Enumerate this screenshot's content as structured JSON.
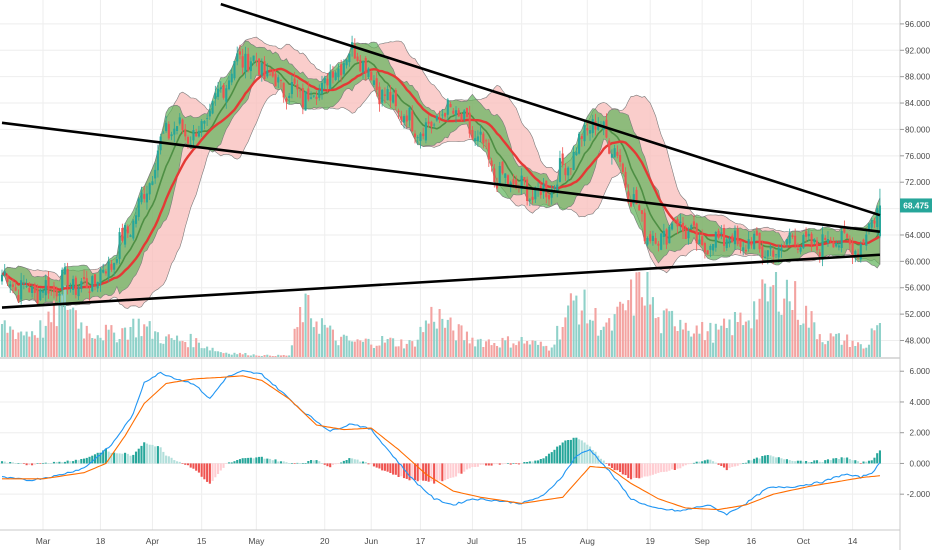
{
  "colors": {
    "up": "#26a69a",
    "down": "#ef5350",
    "vol_up": "#8fd1c9",
    "vol_down": "#f3a3a1",
    "ma": "#e53935",
    "bb_outer_fill": "#f8bcb9",
    "bb_inner_fill": "#5fb35a",
    "trendline": "#000000",
    "macd_line": "#2196f3",
    "signal_line": "#ff6d00",
    "price_tag": "#26a69a",
    "grid": "#eeeeee",
    "axis_text": "#4a4a4a"
  },
  "chart_data": [
    {
      "type": "candlestick",
      "panel": "price",
      "y_ticks": [
        "96.000",
        "92.000",
        "88.000",
        "84.000",
        "80.000",
        "76.000",
        "72.000",
        "68.000",
        "64.000",
        "60.000",
        "56.000",
        "52.000",
        "48.000"
      ],
      "y_tick_values": [
        96,
        92,
        88,
        84,
        80,
        76,
        72,
        68,
        64,
        60,
        56,
        52,
        48
      ],
      "ylim": [
        45.5,
        97.5
      ],
      "last_price_label": "68.475",
      "last_price": 68.475,
      "anchor_closes": [
        [
          0,
          58
        ],
        [
          6,
          56
        ],
        [
          12,
          55.5
        ],
        [
          18,
          56
        ],
        [
          24,
          57
        ],
        [
          30,
          56
        ],
        [
          36,
          58
        ],
        [
          40,
          60
        ],
        [
          45,
          64
        ],
        [
          50,
          68
        ],
        [
          55,
          74
        ],
        [
          60,
          80
        ],
        [
          65,
          80
        ],
        [
          70,
          79
        ],
        [
          75,
          81
        ],
        [
          80,
          86
        ],
        [
          85,
          90
        ],
        [
          90,
          91
        ],
        [
          95,
          89
        ],
        [
          100,
          87
        ],
        [
          105,
          86
        ],
        [
          110,
          85
        ],
        [
          115,
          86
        ],
        [
          120,
          88
        ],
        [
          125,
          91
        ],
        [
          130,
          92
        ],
        [
          135,
          88
        ],
        [
          140,
          85
        ],
        [
          145,
          83
        ],
        [
          150,
          81
        ],
        [
          155,
          80
        ],
        [
          160,
          82
        ],
        [
          165,
          83
        ],
        [
          170,
          80
        ],
        [
          175,
          78
        ],
        [
          180,
          73
        ],
        [
          185,
          72
        ],
        [
          190,
          71
        ],
        [
          195,
          70
        ],
        [
          200,
          71
        ],
        [
          205,
          74
        ],
        [
          210,
          77
        ],
        [
          215,
          81
        ],
        [
          220,
          80
        ],
        [
          225,
          76
        ],
        [
          230,
          70
        ],
        [
          235,
          65
        ],
        [
          240,
          63
        ],
        [
          245,
          66
        ],
        [
          250,
          65
        ],
        [
          255,
          62
        ],
        [
          260,
          63
        ],
        [
          265,
          64
        ],
        [
          270,
          62
        ],
        [
          275,
          63
        ],
        [
          280,
          61
        ],
        [
          285,
          62
        ],
        [
          290,
          64
        ],
        [
          295,
          62
        ],
        [
          300,
          63
        ],
        [
          305,
          64
        ],
        [
          310,
          62
        ],
        [
          315,
          63
        ],
        [
          320,
          68.5
        ]
      ],
      "vol_anchor": [
        [
          0,
          0.38
        ],
        [
          8,
          0.3
        ],
        [
          16,
          0.36
        ],
        [
          24,
          0.72
        ],
        [
          30,
          0.35
        ],
        [
          40,
          0.28
        ],
        [
          50,
          0.4
        ],
        [
          60,
          0.22
        ],
        [
          70,
          0.2
        ],
        [
          80,
          0.06
        ],
        [
          95,
          0.02
        ],
        [
          105,
          0.02
        ],
        [
          110,
          0.6
        ],
        [
          116,
          0.45
        ],
        [
          122,
          0.22
        ],
        [
          130,
          0.18
        ],
        [
          140,
          0.2
        ],
        [
          150,
          0.16
        ],
        [
          158,
          0.55
        ],
        [
          164,
          0.35
        ],
        [
          172,
          0.22
        ],
        [
          180,
          0.18
        ],
        [
          190,
          0.2
        ],
        [
          200,
          0.12
        ],
        [
          210,
          0.72
        ],
        [
          215,
          0.5
        ],
        [
          222,
          0.35
        ],
        [
          228,
          0.6
        ],
        [
          235,
          0.95
        ],
        [
          240,
          0.4
        ],
        [
          248,
          0.5
        ],
        [
          255,
          0.32
        ],
        [
          262,
          0.3
        ],
        [
          270,
          0.45
        ],
        [
          278,
          0.68
        ],
        [
          285,
          0.9
        ],
        [
          292,
          0.6
        ],
        [
          300,
          0.25
        ],
        [
          310,
          0.2
        ],
        [
          316,
          0.1
        ],
        [
          319,
          0.42
        ],
        [
          321,
          0.42
        ]
      ],
      "trendlines": [
        {
          "from": [
            80,
            99
          ],
          "to": [
            321,
            67
          ]
        },
        {
          "from": [
            0,
            81
          ],
          "to": [
            321,
            64.5
          ]
        },
        {
          "from": [
            0,
            53
          ],
          "to": [
            321,
            61
          ]
        }
      ]
    },
    {
      "type": "macd",
      "panel": "indicator",
      "y_ticks": [
        "6.000",
        "4.000",
        "2.000",
        "0.000",
        "-2.000"
      ],
      "y_tick_values": [
        6,
        4,
        2,
        0,
        -2
      ],
      "ylim": [
        -4.2,
        6.6
      ],
      "macd_anchor": [
        [
          0,
          -0.9
        ],
        [
          10,
          -1.1
        ],
        [
          20,
          -0.8
        ],
        [
          30,
          -0.3
        ],
        [
          40,
          1.2
        ],
        [
          48,
          3.2
        ],
        [
          52,
          5.3
        ],
        [
          58,
          5.9
        ],
        [
          64,
          5.5
        ],
        [
          70,
          5.2
        ],
        [
          76,
          4.2
        ],
        [
          82,
          5.6
        ],
        [
          88,
          6.0
        ],
        [
          95,
          5.8
        ],
        [
          102,
          4.7
        ],
        [
          110,
          3.4
        ],
        [
          120,
          2.1
        ],
        [
          128,
          2.6
        ],
        [
          135,
          2.2
        ],
        [
          142,
          0.7
        ],
        [
          150,
          -1.0
        ],
        [
          158,
          -2.3
        ],
        [
          165,
          -2.7
        ],
        [
          172,
          -2.3
        ],
        [
          180,
          -2.4
        ],
        [
          190,
          -2.6
        ],
        [
          198,
          -2.1
        ],
        [
          205,
          -0.8
        ],
        [
          210,
          0.5
        ],
        [
          215,
          0.9
        ],
        [
          222,
          -0.5
        ],
        [
          230,
          -2.3
        ],
        [
          238,
          -2.9
        ],
        [
          248,
          -3.1
        ],
        [
          258,
          -2.7
        ],
        [
          265,
          -3.3
        ],
        [
          272,
          -2.6
        ],
        [
          280,
          -1.6
        ],
        [
          290,
          -1.5
        ],
        [
          300,
          -1.2
        ],
        [
          308,
          -0.7
        ],
        [
          314,
          -0.9
        ],
        [
          318,
          -0.6
        ],
        [
          321,
          0.0
        ]
      ],
      "signal_anchor": [
        [
          0,
          -1.0
        ],
        [
          15,
          -1.0
        ],
        [
          30,
          -0.6
        ],
        [
          38,
          0.0
        ],
        [
          45,
          1.8
        ],
        [
          52,
          3.9
        ],
        [
          60,
          5.2
        ],
        [
          70,
          5.5
        ],
        [
          80,
          5.6
        ],
        [
          88,
          5.7
        ],
        [
          95,
          5.4
        ],
        [
          105,
          4.2
        ],
        [
          115,
          2.5
        ],
        [
          125,
          2.2
        ],
        [
          135,
          2.3
        ],
        [
          145,
          0.9
        ],
        [
          155,
          -0.7
        ],
        [
          165,
          -1.8
        ],
        [
          175,
          -2.2
        ],
        [
          190,
          -2.6
        ],
        [
          205,
          -2.2
        ],
        [
          215,
          -0.2
        ],
        [
          222,
          -0.3
        ],
        [
          230,
          -1.3
        ],
        [
          240,
          -2.3
        ],
        [
          250,
          -2.9
        ],
        [
          262,
          -3.0
        ],
        [
          272,
          -2.7
        ],
        [
          282,
          -2.0
        ],
        [
          295,
          -1.5
        ],
        [
          305,
          -1.2
        ],
        [
          315,
          -0.9
        ],
        [
          321,
          -0.8
        ]
      ]
    }
  ],
  "x_axis": {
    "labels": [
      {
        "text": "Mar",
        "idx": 15
      },
      {
        "text": "18",
        "idx": 36
      },
      {
        "text": "Apr",
        "idx": 55
      },
      {
        "text": "15",
        "idx": 73
      },
      {
        "text": "May",
        "idx": 93
      },
      {
        "text": "20",
        "idx": 118
      },
      {
        "text": "Jun",
        "idx": 135
      },
      {
        "text": "17",
        "idx": 153
      },
      {
        "text": "Jul",
        "idx": 172
      },
      {
        "text": "15",
        "idx": 190
      },
      {
        "text": "Aug",
        "idx": 214
      },
      {
        "text": "19",
        "idx": 237
      },
      {
        "text": "Sep",
        "idx": 256
      },
      {
        "text": "16",
        "idx": 274
      },
      {
        "text": "Oct",
        "idx": 293
      },
      {
        "text": "14",
        "idx": 311
      }
    ]
  }
}
